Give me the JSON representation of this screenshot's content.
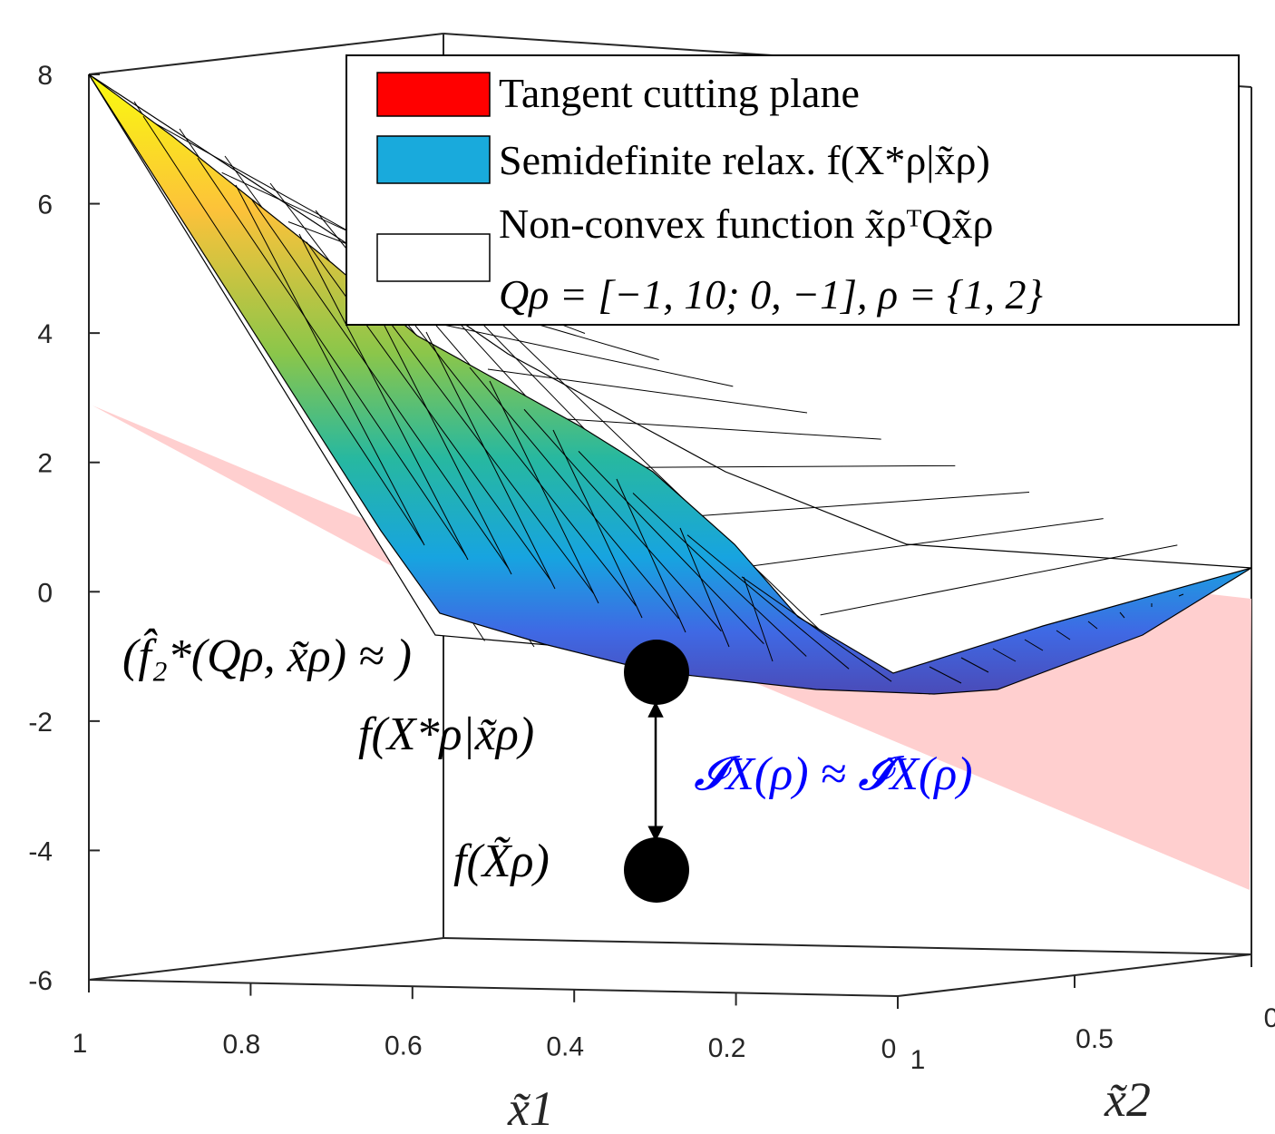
{
  "chart_data": {
    "type": "surface3d",
    "title": "",
    "axes": {
      "x1": {
        "label": "x̃1",
        "ticks": [
          "1",
          "0.8",
          "0.6",
          "0.4",
          "0.2",
          "0"
        ],
        "range": [
          0,
          1
        ]
      },
      "x2": {
        "label": "x̃2",
        "ticks": [
          "1",
          "0.5",
          "0"
        ],
        "range": [
          0,
          1
        ]
      },
      "z": {
        "ticks": [
          "8",
          "6",
          "4",
          "2",
          "0",
          "-2",
          "-4",
          "-6"
        ],
        "range": [
          -6,
          8
        ]
      }
    },
    "legend": {
      "position": "top-right",
      "entries": [
        {
          "swatch": "#ff0000",
          "label": "Tangent cutting plane"
        },
        {
          "swatch": "#19aadc",
          "label": "Semidefinite relax. f(X*ρ|x̃ρ)"
        },
        {
          "swatch": "#ffffff",
          "label": "Non-convex function x̃ρᵀQx̃ρ"
        },
        {
          "swatch": "",
          "label": "Qρ = [−1, 10; 0, −1], ρ = {1, 2}"
        }
      ]
    },
    "series": [
      {
        "name": "Tangent cutting plane",
        "color": "#ffcccc",
        "corner_z": {
          "x1=1,x2=1": 2.9,
          "x1=0,x2=0": -4.6
        }
      },
      {
        "name": "Semidefinite relax. f(X*ρ|x̃ρ)",
        "colormap": "parula"
      },
      {
        "name": "Non-convex function x̃ρᵀQx̃ρ",
        "Q": [
          [
            -1,
            10
          ],
          [
            0,
            -1
          ]
        ],
        "corner_z": {
          "x1=1,x2=1": 8,
          "x1=0,x2=0": 0.3
        }
      }
    ],
    "points": [
      {
        "name": "f(X*ρ|x̃ρ)",
        "z": -1.3
      },
      {
        "name": "f(X̃ρ)",
        "z": -4.4
      }
    ],
    "annotations": {
      "upper_point_line1": "(f̂₂*(Qρ, x̃ρ) ≈ )",
      "upper_point_line2": "f(X*ρ|x̃ρ)",
      "lower_point": "f(X̃ρ)",
      "gap": "𝓘X(ρ) ≈ 𝓘̂X(ρ)",
      "gap_color": "#0000ff"
    }
  }
}
